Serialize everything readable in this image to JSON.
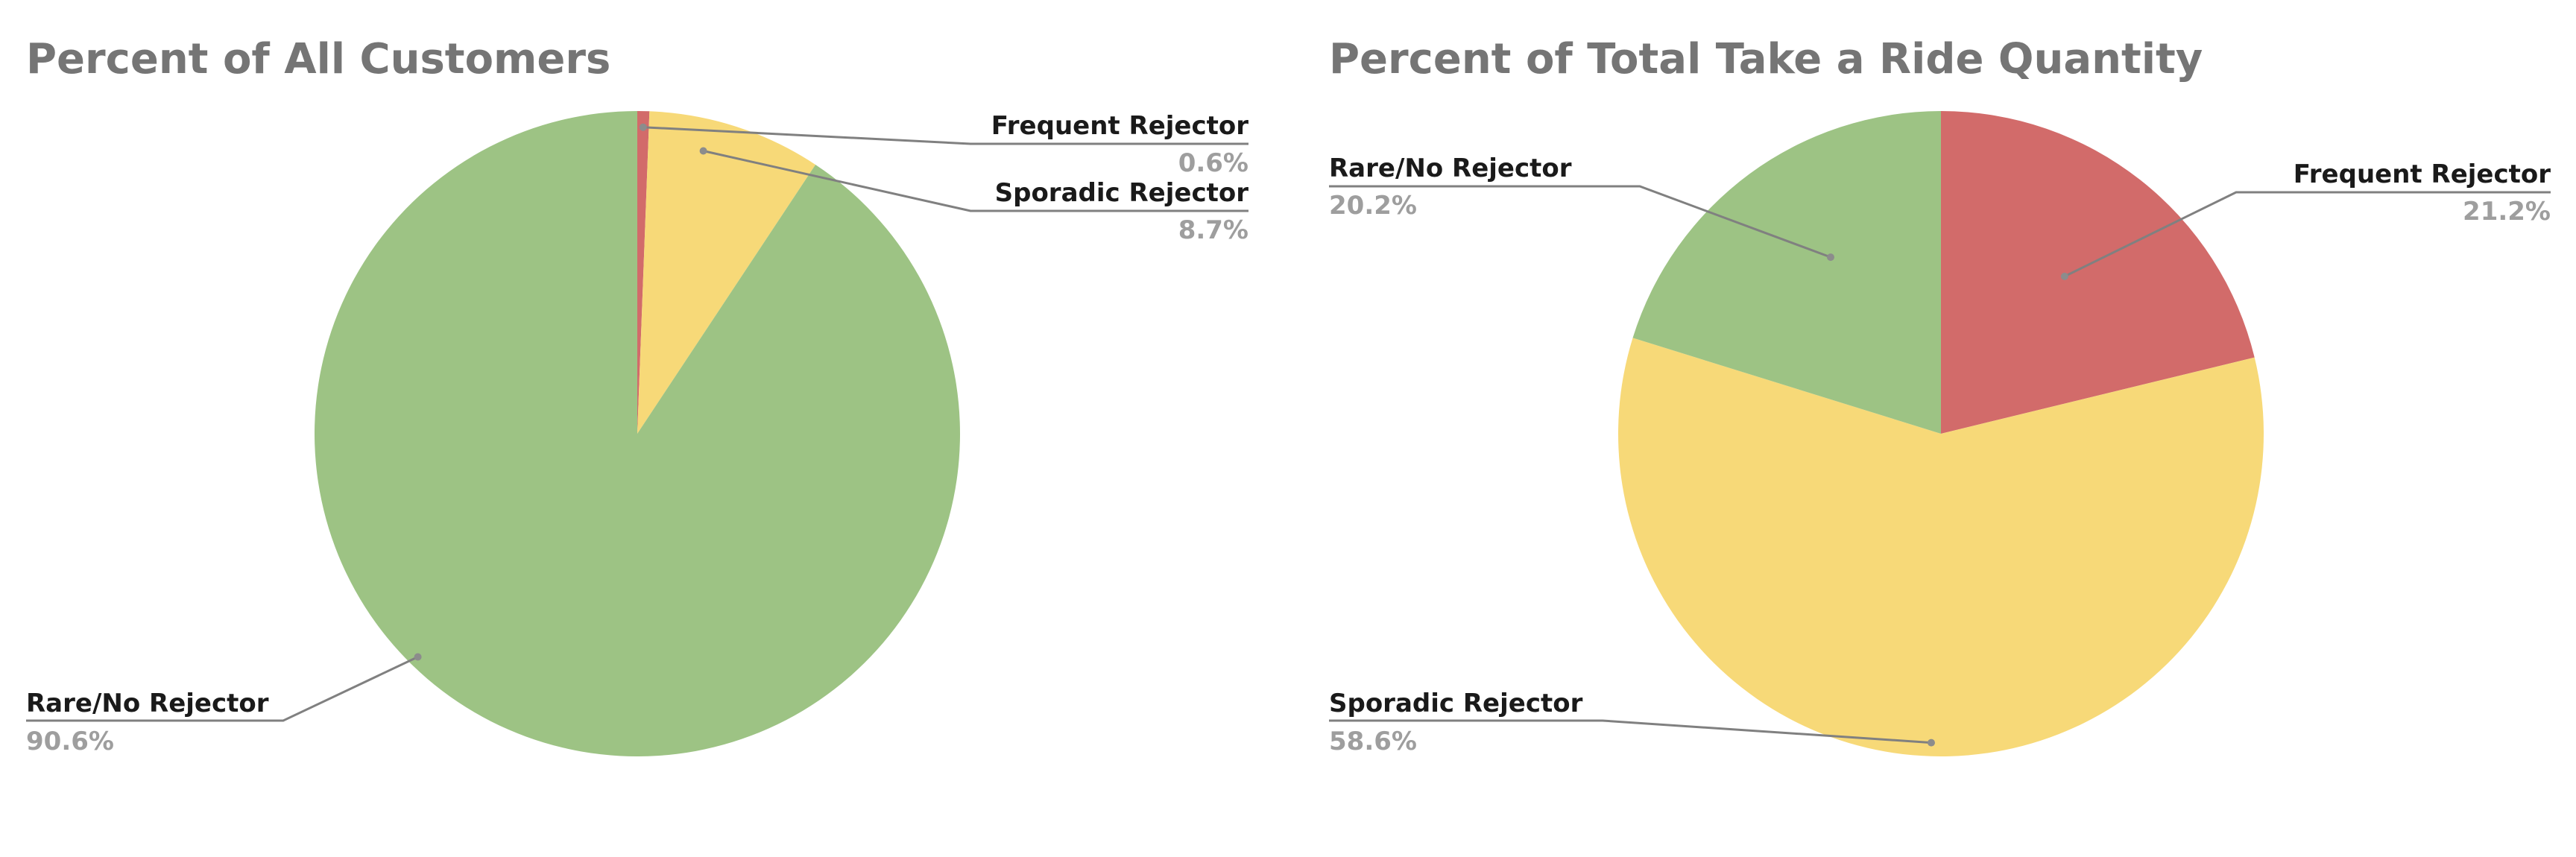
{
  "chart_data": [
    {
      "type": "pie",
      "title": "Percent of All Customers",
      "slices": [
        {
          "label": "Frequent Rejector",
          "value": 0.6,
          "value_label": "0.6%",
          "color": "#d26b6a"
        },
        {
          "label": "Sporadic Rejector",
          "value": 8.7,
          "value_label": "8.7%",
          "color": "#f7d978"
        },
        {
          "label": "Rare/No Rejector",
          "value": 90.6,
          "value_label": "90.6%",
          "color": "#9dc384"
        }
      ]
    },
    {
      "type": "pie",
      "title": "Percent of Total Take a Ride Quantity",
      "slices": [
        {
          "label": "Frequent Rejector",
          "value": 21.2,
          "value_label": "21.2%",
          "color": "#d26b6a"
        },
        {
          "label": "Sporadic Rejector",
          "value": 58.6,
          "value_label": "58.6%",
          "color": "#f7d978"
        },
        {
          "label": "Rare/No Rejector",
          "value": 20.2,
          "value_label": "20.2%",
          "color": "#9dc384"
        }
      ]
    }
  ]
}
